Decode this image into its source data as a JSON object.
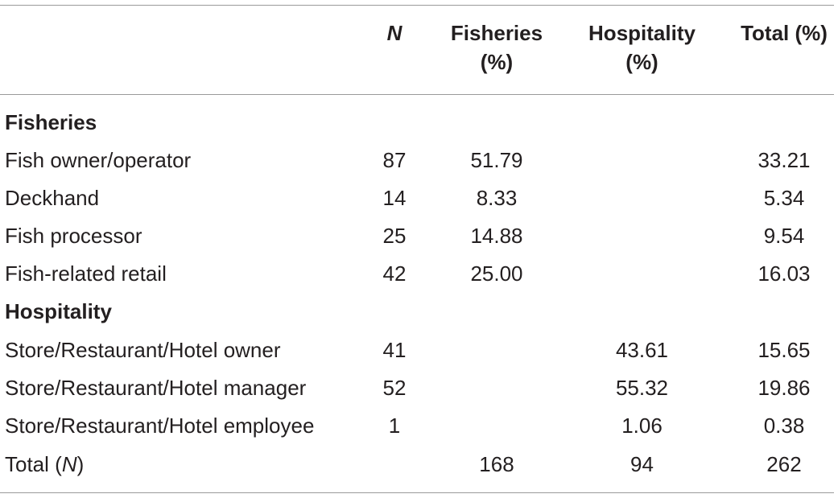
{
  "table": {
    "header": {
      "col_n": "N",
      "col_fisheries_line1": "Fisheries",
      "col_fisheries_line2": "(%)",
      "col_hospitality_line1": "Hospitality",
      "col_hospitality_line2": "(%)",
      "col_total": "Total (%)"
    },
    "sections": [
      {
        "title": "Fisheries",
        "rows": [
          {
            "label": "Fish owner/operator",
            "n": "87",
            "fisheries": "51.79",
            "hospitality": "",
            "total": "33.21"
          },
          {
            "label": "Deckhand",
            "n": "14",
            "fisheries": "8.33",
            "hospitality": "",
            "total": "5.34"
          },
          {
            "label": "Fish processor",
            "n": "25",
            "fisheries": "14.88",
            "hospitality": "",
            "total": "9.54"
          },
          {
            "label": "Fish-related retail",
            "n": "42",
            "fisheries": "25.00",
            "hospitality": "",
            "total": "16.03"
          }
        ]
      },
      {
        "title": "Hospitality",
        "rows": [
          {
            "label": "Store/Restaurant/Hotel owner",
            "n": "41",
            "fisheries": "",
            "hospitality": "43.61",
            "total": "15.65"
          },
          {
            "label": "Store/Restaurant/Hotel manager",
            "n": "52",
            "fisheries": "",
            "hospitality": "55.32",
            "total": "19.86"
          },
          {
            "label": "Store/Restaurant/Hotel employee",
            "n": "1",
            "fisheries": "",
            "hospitality": "1.06",
            "total": "0.38"
          }
        ]
      }
    ],
    "total_row": {
      "label_prefix": "Total (",
      "label_italic": "N",
      "label_suffix": ")",
      "n": "",
      "fisheries": "168",
      "hospitality": "94",
      "total": "262"
    }
  }
}
